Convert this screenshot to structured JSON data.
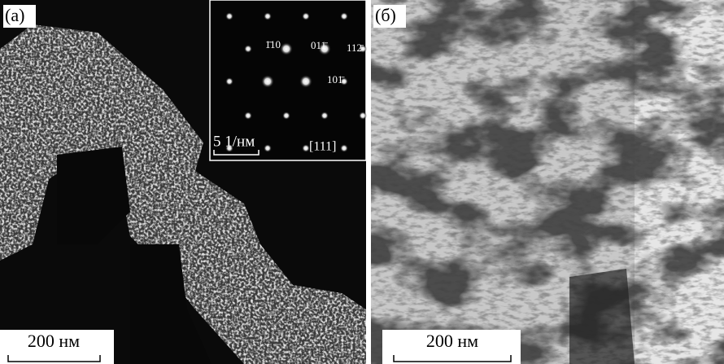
{
  "panels": [
    {
      "label": "(а)",
      "scale_bar": "200 нм",
      "inset": {
        "spot_labels": [
          "1̄10",
          "011̄",
          "112̄",
          "101̄"
        ],
        "scale": "5 1/нм",
        "zone_axis": "[111]"
      }
    },
    {
      "label": "(б)",
      "scale_bar": "200 нм"
    }
  ]
}
